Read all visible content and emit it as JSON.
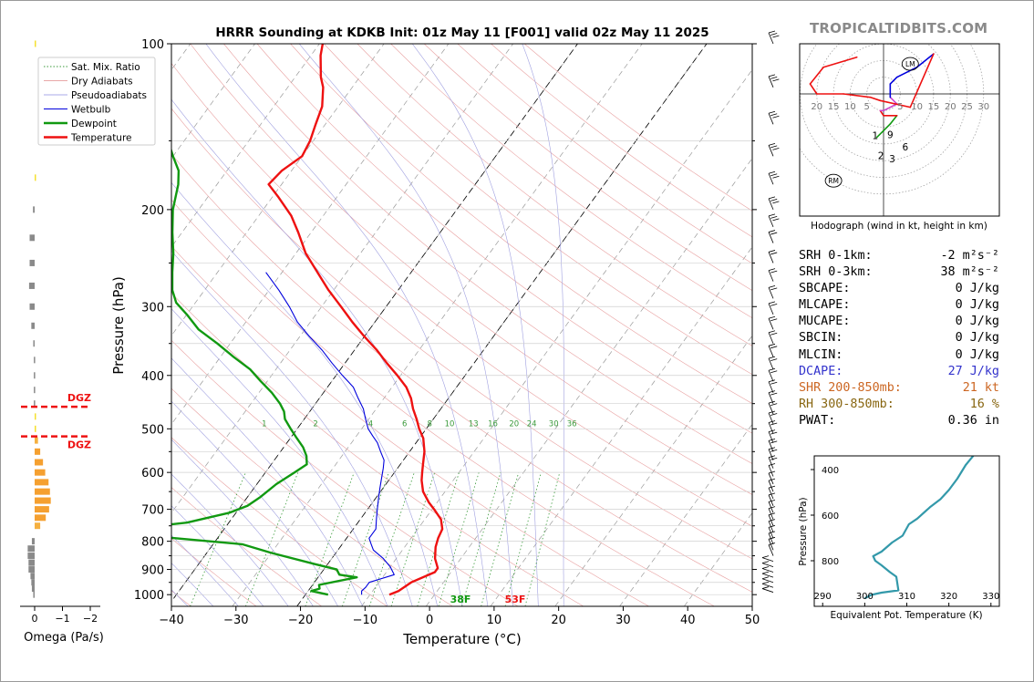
{
  "page": {
    "brand": "TROPICALTIDBITS.COM"
  },
  "chart_data": [
    {
      "type": "skewt",
      "title": "HRRR Sounding at KDKB Init: 01z May 11 [F001] valid 02z May 11 2025",
      "xlabel": "Temperature (°C)",
      "ylabel": "Pressure (hPa)",
      "xlim": [
        -40,
        50
      ],
      "ylim": [
        1050,
        100
      ],
      "y_scale": "log",
      "x_ticks": [
        -40,
        -30,
        -20,
        -10,
        0,
        10,
        20,
        30,
        40,
        50
      ],
      "x_tick_labels": [
        "−40",
        "−30",
        "−20",
        "−10",
        "0",
        "10",
        "20",
        "30",
        "40",
        "50"
      ],
      "y_ticks": [
        100,
        200,
        300,
        400,
        500,
        600,
        700,
        800,
        900,
        1000
      ],
      "y_tick_labels": [
        "100",
        "200",
        "300",
        "400",
        "500",
        "600",
        "700",
        "800",
        "900",
        "1000"
      ],
      "legend": {
        "position": "upper-left",
        "entries": [
          {
            "label": "Sat. Mix. Ratio",
            "color": "#3a9a3a",
            "style": "dotted"
          },
          {
            "label": "Dry Adiabats",
            "color": "#e8a8a8",
            "style": "solid"
          },
          {
            "label": "Pseudoadiabats",
            "color": "#a8a8e8",
            "style": "solid"
          },
          {
            "label": "Wetbulb",
            "color": "#0000dd",
            "style": "solid"
          },
          {
            "label": "Dewpoint",
            "color": "#119911",
            "style": "solid"
          },
          {
            "label": "Temperature",
            "color": "#ee1111",
            "style": "solid"
          }
        ]
      },
      "mixing_ratio_labels": [
        "1",
        "2",
        "4",
        "6",
        "8",
        "10",
        "13",
        "16",
        "20",
        "24",
        "30",
        "36"
      ],
      "series": [
        {
          "name": "Temperature",
          "color": "#ee1111",
          "points": [
            [
              13,
              1000
            ],
            [
              14,
              985
            ],
            [
              15,
              950
            ],
            [
              17.5,
              910
            ],
            [
              17.5,
              895
            ],
            [
              16,
              860
            ],
            [
              14.8,
              820
            ],
            [
              14.2,
              790
            ],
            [
              13.8,
              760
            ],
            [
              12.5,
              730
            ],
            [
              10.3,
              700
            ],
            [
              8.7,
              680
            ],
            [
              6.6,
              650
            ],
            [
              5.1,
              620
            ],
            [
              4.3,
              600
            ],
            [
              3.5,
              580
            ],
            [
              2.3,
              550
            ],
            [
              0.6,
              520
            ],
            [
              -1.1,
              500
            ],
            [
              -2.6,
              480
            ],
            [
              -4.3,
              460
            ],
            [
              -5.8,
              440
            ],
            [
              -7.8,
              420
            ],
            [
              -10.5,
              400
            ],
            [
              -13.5,
              380
            ],
            [
              -16.5,
              360
            ],
            [
              -20,
              340
            ],
            [
              -23.5,
              320
            ],
            [
              -27,
              300
            ],
            [
              -30.8,
              280
            ],
            [
              -34.5,
              260
            ],
            [
              -38.5,
              240
            ],
            [
              -42,
              220
            ],
            [
              -45,
              205
            ],
            [
              -49,
              190
            ],
            [
              -52,
              180
            ],
            [
              -51.5,
              170
            ],
            [
              -50,
              160
            ],
            [
              -50.5,
              150
            ],
            [
              -51.5,
              140
            ],
            [
              -52.5,
              130
            ],
            [
              -54.5,
              120
            ],
            [
              -56,
              115
            ],
            [
              -58.5,
              105
            ],
            [
              -59.5,
              100
            ]
          ]
        },
        {
          "name": "Dewpoint",
          "color": "#119911",
          "points": [
            [
              3.5,
              1000
            ],
            [
              0.5,
              985
            ],
            [
              1.5,
              975
            ],
            [
              1,
              960
            ],
            [
              6,
              930
            ],
            [
              3,
              920
            ],
            [
              2,
              900
            ],
            [
              -2,
              880
            ],
            [
              -10,
              840
            ],
            [
              -15.5,
              810
            ],
            [
              -26.5,
              790
            ],
            [
              -37,
              775
            ],
            [
              -35,
              760
            ],
            [
              -26.5,
              740
            ],
            [
              -21,
              710
            ],
            [
              -19,
              690
            ],
            [
              -18,
              665
            ],
            [
              -17,
              630
            ],
            [
              -15.5,
              600
            ],
            [
              -14.5,
              580
            ],
            [
              -15.5,
              560
            ],
            [
              -17,
              540
            ],
            [
              -19,
              520
            ],
            [
              -21,
              500
            ],
            [
              -23,
              480
            ],
            [
              -24,
              465
            ],
            [
              -25.5,
              450
            ],
            [
              -28,
              430
            ],
            [
              -31,
              410
            ],
            [
              -34,
              390
            ],
            [
              -38,
              370
            ],
            [
              -42,
              350
            ],
            [
              -46.5,
              330
            ],
            [
              -50,
              310
            ],
            [
              -53,
              295
            ],
            [
              -55,
              280
            ],
            [
              -57,
              260
            ],
            [
              -59,
              240
            ],
            [
              -61.5,
              220
            ],
            [
              -64,
              200
            ],
            [
              -66,
              180
            ],
            [
              -67.5,
              170
            ],
            [
              -70,
              160
            ],
            [
              -72.5,
              150
            ],
            [
              -76,
              140
            ],
            [
              -80,
              130
            ],
            [
              -85,
              120
            ],
            [
              -88,
              110
            ],
            [
              -89.5,
              100
            ]
          ]
        },
        {
          "name": "Wetbulb",
          "color": "#0000dd",
          "points": [
            [
              8.7,
              1000
            ],
            [
              8.3,
              985
            ],
            [
              8.5,
              970
            ],
            [
              8.5,
              950
            ],
            [
              11.5,
              920
            ],
            [
              10,
              890
            ],
            [
              8,
              860
            ],
            [
              5.5,
              830
            ],
            [
              4.5,
              810
            ],
            [
              3.5,
              790
            ],
            [
              3.5,
              760
            ],
            [
              2.5,
              730
            ],
            [
              1.5,
              700
            ],
            [
              0.5,
              670
            ],
            [
              -0.5,
              640
            ],
            [
              -1.5,
              610
            ],
            [
              -2.2,
              590
            ],
            [
              -3,
              570
            ],
            [
              -4.5,
              550
            ],
            [
              -6,
              530
            ],
            [
              -7.5,
              515
            ],
            [
              -9,
              500
            ],
            [
              -10.5,
              480
            ],
            [
              -12,
              460
            ],
            [
              -14,
              440
            ],
            [
              -16,
              420
            ],
            [
              -19,
              400
            ],
            [
              -22,
              380
            ],
            [
              -25,
              360
            ],
            [
              -28.5,
              340
            ],
            [
              -32,
              320
            ],
            [
              -35,
              300
            ],
            [
              -38.5,
              280
            ],
            [
              -42.5,
              260
            ]
          ]
        }
      ],
      "surface_annotations": [
        {
          "text": "38F",
          "color": "#119911"
        },
        {
          "text": "53F",
          "color": "#ee1111"
        }
      ]
    },
    {
      "type": "bar",
      "title": "",
      "xlabel": "Omega (Pa/s)",
      "x_ticks": [
        0,
        -1,
        -2
      ],
      "x_tick_labels": [
        "0",
        "−1",
        "−2"
      ],
      "xlim": [
        0.35,
        -2.3
      ],
      "bars": [
        {
          "p": 100,
          "value": -0.02,
          "color": "#f5e030"
        },
        {
          "p": 175,
          "value": -0.02,
          "color": "#f5e030"
        },
        {
          "p": 200,
          "value": 0.06,
          "color": "#8a8a8a"
        },
        {
          "p": 225,
          "value": 0.18,
          "color": "#8a8a8a"
        },
        {
          "p": 250,
          "value": 0.18,
          "color": "#8a8a8a"
        },
        {
          "p": 275,
          "value": 0.2,
          "color": "#8a8a8a"
        },
        {
          "p": 300,
          "value": 0.18,
          "color": "#8a8a8a"
        },
        {
          "p": 325,
          "value": 0.12,
          "color": "#8a8a8a"
        },
        {
          "p": 350,
          "value": 0.05,
          "color": "#8a8a8a"
        },
        {
          "p": 375,
          "value": 0.03,
          "color": "#8a8a8a"
        },
        {
          "p": 400,
          "value": 0.03,
          "color": "#8a8a8a"
        },
        {
          "p": 425,
          "value": 0.03,
          "color": "#8a8a8a"
        },
        {
          "p": 450,
          "value": 0.03,
          "color": "#8a8a8a"
        },
        {
          "p": 475,
          "value": -0.03,
          "color": "#f5e030"
        },
        {
          "p": 500,
          "value": -0.05,
          "color": "#f5e030"
        },
        {
          "p": 525,
          "value": -0.12,
          "color": "#f5b040"
        },
        {
          "p": 550,
          "value": -0.2,
          "color": "#f5a030"
        },
        {
          "p": 575,
          "value": -0.3,
          "color": "#f5a030"
        },
        {
          "p": 600,
          "value": -0.38,
          "color": "#f5a030"
        },
        {
          "p": 625,
          "value": -0.5,
          "color": "#f5a030"
        },
        {
          "p": 650,
          "value": -0.55,
          "color": "#f5a030"
        },
        {
          "p": 675,
          "value": -0.58,
          "color": "#f5a030"
        },
        {
          "p": 700,
          "value": -0.52,
          "color": "#f5a030"
        },
        {
          "p": 725,
          "value": -0.4,
          "color": "#f5a030"
        },
        {
          "p": 750,
          "value": -0.2,
          "color": "#f5b040"
        },
        {
          "p": 800,
          "value": 0.1,
          "color": "#8a8a8a"
        },
        {
          "p": 825,
          "value": 0.25,
          "color": "#8a8a8a"
        },
        {
          "p": 850,
          "value": 0.25,
          "color": "#8a8a8a"
        },
        {
          "p": 875,
          "value": 0.22,
          "color": "#8a8a8a"
        },
        {
          "p": 900,
          "value": 0.22,
          "color": "#8a8a8a"
        },
        {
          "p": 925,
          "value": 0.15,
          "color": "#8a8a8a"
        },
        {
          "p": 950,
          "value": 0.12,
          "color": "#8a8a8a"
        },
        {
          "p": 975,
          "value": 0.1,
          "color": "#8a8a8a"
        },
        {
          "p": 1000,
          "value": 0.05,
          "color": "#8a8a8a"
        }
      ],
      "dgz_label": "DGZ",
      "dgz_color": "#ee1111",
      "dgz_pressures": [
        456,
        516
      ]
    },
    {
      "type": "hodograph",
      "title": "",
      "xlabel": "Hodograph (wind in kt, height in km)",
      "ring_speeds": [
        5,
        10,
        15,
        20,
        25,
        30
      ],
      "ring_labels_left": [
        "20",
        "15",
        "10",
        "5"
      ],
      "ring_labels_right": [
        "5",
        "10",
        "15",
        "20",
        "25",
        "30"
      ],
      "trace": [
        {
          "u": -2,
          "v": -13,
          "color": "#119911"
        },
        {
          "u": 0,
          "v": -11,
          "color": "#119911"
        },
        {
          "u": 2,
          "v": -9,
          "color": "#119911"
        },
        {
          "u": 4,
          "v": -6.5,
          "color": "#119911"
        },
        {
          "u": 0,
          "v": -6.5,
          "color": "#ee1111"
        },
        {
          "u": -1,
          "v": -5,
          "color": "#ee1111"
        },
        {
          "u": 0,
          "v": -5,
          "color": "#cc44cc"
        },
        {
          "u": 4,
          "v": -3,
          "color": "#cc44cc"
        },
        {
          "u": 2,
          "v": -1,
          "color": "#cc44cc"
        },
        {
          "u": 2,
          "v": 3,
          "color": "#0000dd"
        },
        {
          "u": 4,
          "v": 5,
          "color": "#0000dd"
        },
        {
          "u": 10,
          "v": 8,
          "color": "#0000dd"
        },
        {
          "u": 15,
          "v": 12,
          "color": "#0000dd"
        },
        {
          "u": 8,
          "v": -4,
          "color": "#ee1111"
        },
        {
          "u": -1,
          "v": -2,
          "color": "#ee1111"
        },
        {
          "u": -4,
          "v": -1,
          "color": "#ee1111"
        },
        {
          "u": -12,
          "v": 0,
          "color": "#ee1111"
        },
        {
          "u": -20,
          "v": 0,
          "color": "#ee1111"
        },
        {
          "u": -22,
          "v": 3,
          "color": "#ee1111"
        },
        {
          "u": -18,
          "v": 8,
          "color": "#ee1111"
        },
        {
          "u": -8,
          "v": 11,
          "color": "#ee1111"
        }
      ],
      "height_labels": [
        "1",
        "2",
        "3",
        "6",
        "9"
      ],
      "storm_motion_labels": [
        "LM",
        "RM"
      ]
    },
    {
      "type": "line",
      "title": "",
      "xlabel": "Equivalent Pot. Temperature (K)",
      "ylabel": "Pressure (hPa)",
      "xlim": [
        288,
        332
      ],
      "ylim": [
        1000,
        340
      ],
      "x_ticks": [
        290,
        300,
        310,
        320,
        330
      ],
      "x_tick_labels": [
        "290",
        "300",
        "310",
        "320",
        "330"
      ],
      "y_ticks": [
        400,
        600,
        800
      ],
      "y_tick_labels": [
        "400",
        "600",
        "800"
      ],
      "series": [
        {
          "color": "#3399aa",
          "x": [
            300,
            301.5,
            304,
            308,
            307.5,
            306,
            304,
            302.5,
            302,
            304,
            306.5,
            309,
            310.5,
            312.5,
            315.5,
            318,
            320,
            322,
            324,
            326
          ],
          "y": [
            965,
            950,
            940,
            930,
            870,
            850,
            820,
            800,
            780,
            760,
            720,
            690,
            640,
            615,
            565,
            530,
            490,
            440,
            380,
            335
          ]
        }
      ]
    }
  ],
  "indices": [
    {
      "label": "SRH 0-1km:",
      "value": "-2 m²s⁻²",
      "color": "#000000"
    },
    {
      "label": "SRH 0-3km:",
      "value": "38 m²s⁻²",
      "color": "#000000"
    },
    {
      "label": "SBCAPE:",
      "value": "0 J/kg",
      "color": "#000000"
    },
    {
      "label": "MLCAPE:",
      "value": "0 J/kg",
      "color": "#000000"
    },
    {
      "label": "MUCAPE:",
      "value": "0 J/kg",
      "color": "#000000"
    },
    {
      "label": "SBCIN:",
      "value": "0 J/kg",
      "color": "#000000"
    },
    {
      "label": "MLCIN:",
      "value": "0 J/kg",
      "color": "#000000"
    },
    {
      "label": "DCAPE:",
      "value": "27 J/kg",
      "color": "#3333cc"
    },
    {
      "label": "SHR 200-850mb:",
      "value": "21 kt",
      "color": "#cc6622"
    },
    {
      "label": "RH 300-850mb:",
      "value": "16 %",
      "color": "#886611"
    },
    {
      "label": "PWAT:",
      "value": "0.36 in",
      "color": "#000000"
    }
  ]
}
